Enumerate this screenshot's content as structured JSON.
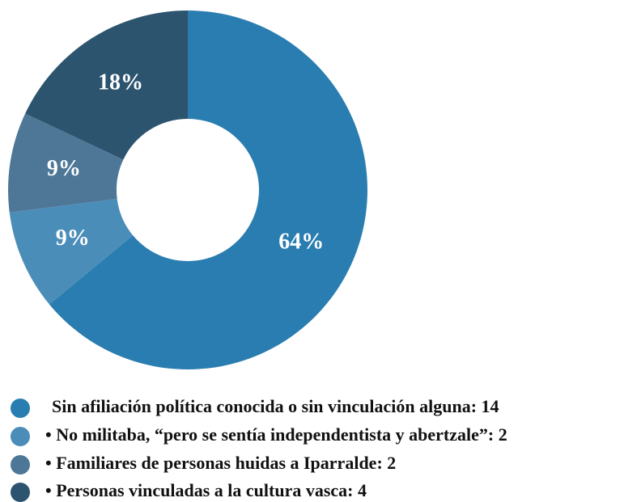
{
  "chart_data": {
    "type": "donut",
    "categories": [
      "Sin afiliación política conocida o sin vinculación alguna: 14",
      "• No militaba, “pero se sentía independentista y abertzale”: 2",
      "• Familiares de personas huidas a Iparralde: 2",
      "• Personas vinculadas a la cultura vasca: 4"
    ],
    "values": [
      64,
      9,
      9,
      18
    ],
    "value_labels": [
      "64%",
      "9%",
      "9%",
      "18%"
    ],
    "colors": [
      "#2a7db0",
      "#4b8db9",
      "#4e7797",
      "#2c546f"
    ]
  }
}
